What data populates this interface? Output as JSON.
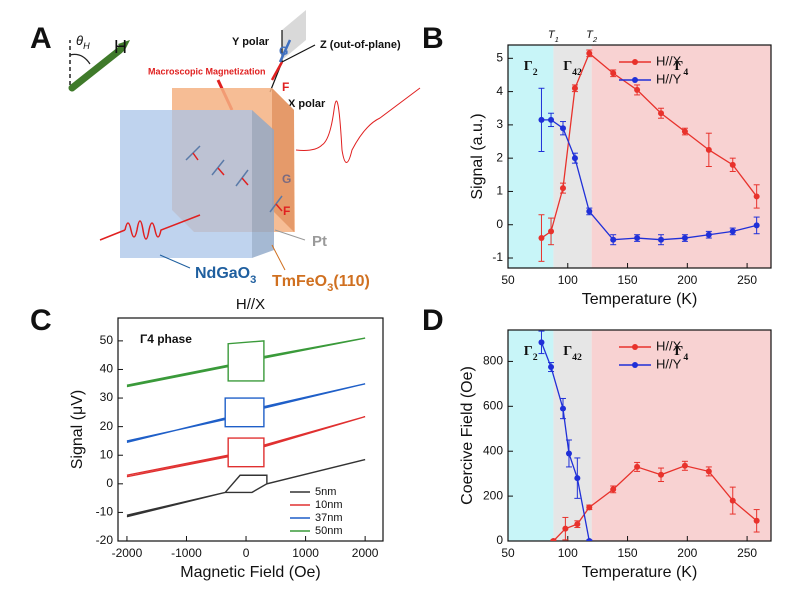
{
  "panels": [
    "A",
    "B",
    "C",
    "D"
  ],
  "diagram": {
    "theta": {
      "text": "θ",
      "sub": "H"
    },
    "field": "H",
    "y_axis": "Y polar",
    "z_axis": "Z (out-of-plane)",
    "x_axis": "X polar",
    "g_top": "G",
    "f_top": "F",
    "magnetization": "Macroscopic Magnetization",
    "g_slab": "G",
    "f_slab": "F",
    "pt": "Pt",
    "substrate": {
      "text": "NdGaO",
      "sub": "3"
    },
    "film": {
      "text": "TmFeO",
      "sub": "3",
      "after": "(110)"
    }
  },
  "chart_data": [
    {
      "type": "line",
      "xlabel": "Temperature (K)",
      "ylabel": "Signal (a.u.)",
      "xlim": [
        50,
        270
      ],
      "xticks": [
        50,
        100,
        150,
        200,
        250
      ],
      "ylim": [
        -1.3,
        5.4
      ],
      "yticks": [
        -1,
        0,
        1,
        2,
        3,
        4,
        5
      ],
      "markers": true,
      "legend": "upper right",
      "regions": [
        {
          "label": {
            "text": "Γ",
            "sub": "2"
          },
          "from": 50,
          "to": 88,
          "color": "#c8f5f8"
        },
        {
          "label": {
            "text": "Γ",
            "sub": "42"
          },
          "from": 88,
          "to": 120,
          "color": "#e6e6e6"
        },
        {
          "label": {
            "text": "Γ",
            "sub": "4"
          },
          "from": 120,
          "to": 270,
          "color": "#f8d2d2"
        }
      ],
      "boundary_labels": [
        {
          "text": "T",
          "sub": "1"
        },
        {
          "text": "T",
          "sub": "2"
        }
      ],
      "x": [
        78,
        86,
        96,
        106,
        118,
        138,
        158,
        178,
        198,
        218,
        238,
        258
      ],
      "series": [
        {
          "name": "H//X",
          "color": "#e8322c",
          "values": [
            -0.4,
            -0.2,
            1.1,
            4.1,
            5.15,
            4.55,
            4.05,
            3.35,
            2.8,
            2.25,
            1.8,
            0.85
          ],
          "errors": [
            0.7,
            0.4,
            0.15,
            0.1,
            0.1,
            0.1,
            0.15,
            0.15,
            0.1,
            0.5,
            0.2,
            0.35
          ]
        },
        {
          "name": "H//Y",
          "color": "#2030d8",
          "values": [
            3.15,
            3.15,
            2.9,
            2.0,
            0.4,
            -0.45,
            -0.4,
            -0.45,
            -0.4,
            -0.3,
            -0.2,
            -0.02
          ],
          "errors": [
            0.95,
            0.2,
            0.2,
            0.15,
            0.1,
            0.15,
            0.1,
            0.15,
            0.1,
            0.1,
            0.1,
            0.25
          ]
        }
      ]
    },
    {
      "type": "line",
      "title": "H//X",
      "annotation": "Γ4 phase",
      "xlabel": "Magnetic Field (Oe)",
      "ylabel": "Signal (μV)",
      "xlim": [
        -2150,
        2300
      ],
      "xticks": [
        -2000,
        -1000,
        0,
        1000,
        2000
      ],
      "ylim": [
        -20,
        58
      ],
      "yticks": [
        -20,
        -10,
        0,
        10,
        20,
        30,
        40,
        50
      ],
      "markers": false,
      "legend": "lower right",
      "series": [
        {
          "name": "5nm",
          "color": "#333333",
          "x": [
            -2000,
            -350,
            -100,
            350,
            350,
            2000,
            350,
            100,
            -350,
            -2000
          ],
          "values": [
            -11.5,
            -3,
            3,
            3,
            0,
            8.5,
            0,
            -3,
            -3,
            -11
          ]
        },
        {
          "name": "10nm",
          "color": "#e03030",
          "x": [
            -2000,
            -300,
            -300,
            300,
            300,
            2000,
            300,
            300,
            -300,
            -300,
            -2000
          ],
          "values": [
            3,
            10,
            16,
            16,
            13.5,
            23.5,
            13,
            6,
            6,
            9.5,
            2.5
          ]
        },
        {
          "name": "37nm",
          "color": "#1f5fc8",
          "x": [
            -2000,
            -350,
            -350,
            300,
            300,
            2000,
            300,
            300,
            -350,
            -350,
            -2000
          ],
          "values": [
            14.5,
            23,
            30,
            30,
            26.5,
            35,
            27,
            20,
            20,
            22.5,
            15
          ]
        },
        {
          "name": "50nm",
          "color": "#3a9a3a",
          "x": [
            -2000,
            -300,
            -300,
            300,
            300,
            2000,
            300,
            300,
            -300,
            -300,
            -2000
          ],
          "values": [
            34.5,
            41.5,
            49,
            50,
            44,
            51,
            44.5,
            36,
            36,
            41,
            34
          ]
        }
      ]
    },
    {
      "type": "line",
      "xlabel": "Temperature (K)",
      "ylabel": "Coercive Field (Oe)",
      "xlim": [
        50,
        270
      ],
      "xticks": [
        50,
        100,
        150,
        200,
        250
      ],
      "ylim": [
        0,
        940
      ],
      "yticks": [
        0,
        200,
        400,
        600,
        800
      ],
      "markers": true,
      "legend": "upper right",
      "regions": [
        {
          "label": {
            "text": "Γ",
            "sub": "2"
          },
          "from": 50,
          "to": 88,
          "color": "#c8f5f8"
        },
        {
          "label": {
            "text": "Γ",
            "sub": "42"
          },
          "from": 88,
          "to": 120,
          "color": "#e6e6e6"
        },
        {
          "label": {
            "text": "Γ",
            "sub": "4"
          },
          "from": 120,
          "to": 270,
          "color": "#f8d2d2"
        }
      ],
      "series": [
        {
          "name": "H//X",
          "color": "#e8322c",
          "x": [
            88,
            98,
            108,
            118,
            138,
            158,
            178,
            198,
            218,
            238,
            258
          ],
          "values": [
            0,
            55,
            75,
            150,
            230,
            330,
            295,
            335,
            310,
            180,
            90
          ],
          "errors": [
            5,
            50,
            15,
            10,
            15,
            20,
            30,
            20,
            20,
            60,
            50
          ]
        },
        {
          "name": "H//Y",
          "color": "#2030d8",
          "x": [
            78,
            86,
            96,
            101,
            108,
            118
          ],
          "values": [
            885,
            775,
            590,
            390,
            280,
            0
          ],
          "errors": [
            50,
            20,
            45,
            60,
            90,
            5
          ]
        }
      ]
    }
  ]
}
